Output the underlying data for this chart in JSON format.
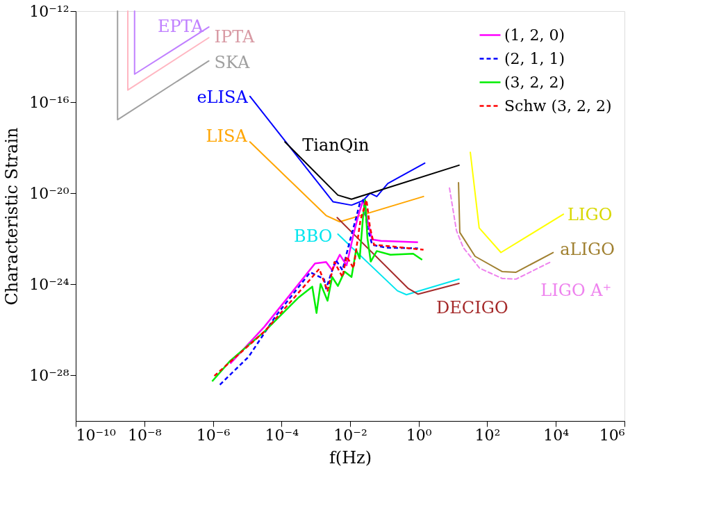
{
  "chart_data": {
    "type": "line",
    "xlabel": "f(Hz)",
    "ylabel": "Characteristic Strain",
    "log": "xy",
    "grid": false,
    "legend": "top right",
    "xlim": [
      1e-10,
      1000000.0
    ],
    "ylim": [
      1e-30,
      1e-12
    ],
    "xticks": [
      {
        "value": 1e-10,
        "label": "10⁻¹⁰"
      },
      {
        "value": 1e-08,
        "label": "10⁻⁸"
      },
      {
        "value": 1e-06,
        "label": "10⁻⁶"
      },
      {
        "value": 0.0001,
        "label": "10⁻⁴"
      },
      {
        "value": 0.01,
        "label": "10⁻²"
      },
      {
        "value": 1,
        "label": "10⁰"
      },
      {
        "value": 100,
        "label": "10²"
      },
      {
        "value": 10000,
        "label": "10⁴"
      },
      {
        "value": 1000000,
        "label": "10⁶"
      }
    ],
    "yticks": [
      {
        "value": 1e-28,
        "label": "10⁻²⁸"
      },
      {
        "value": 1e-24,
        "label": "10⁻²⁴"
      },
      {
        "value": 1e-20,
        "label": "10⁻²⁰"
      },
      {
        "value": 1e-16,
        "label": "10⁻¹⁶"
      },
      {
        "value": 1e-12,
        "label": "10⁻¹²"
      }
    ],
    "series": [
      {
        "name": "EPTA",
        "line_style": "solid",
        "color": "#c080ff",
        "x": [
          5.2e-09,
          5.2e-09,
          7.6e-07
        ],
        "values": [
          1e-12,
          1.7e-15,
          2e-13
        ]
      },
      {
        "name": "IPTA",
        "line_style": "solid",
        "color": "#ffb6c1",
        "x": [
          3.3e-09,
          3.3e-09,
          7.6e-07
        ],
        "values": [
          1e-12,
          3.4e-16,
          6.8e-14
        ]
      },
      {
        "name": "SKA",
        "line_style": "solid",
        "color": "#a0a0a0",
        "x": [
          1.66e-09,
          1.66e-09,
          7.6e-07
        ],
        "values": [
          1e-12,
          1.7e-17,
          6.5e-15
        ]
      },
      {
        "name": "eLISA",
        "line_style": "solid",
        "color": "#0000ff",
        "x": [
          1.2e-05,
          0.0011,
          0.0032,
          0.011,
          0.024,
          0.038,
          0.06,
          0.126,
          1.5
        ],
        "values": [
          1.8e-16,
          3.2e-20,
          4.2e-21,
          3e-21,
          4.8e-21,
          1e-20,
          7.2e-21,
          2.7e-20,
          2.1e-19
        ]
      },
      {
        "name": "LISA",
        "line_style": "solid",
        "color": "#ffa500",
        "x": [
          1.2e-05,
          0.002,
          0.005,
          1.38
        ],
        "values": [
          1.8e-18,
          1.05e-21,
          5.6e-22,
          7.2e-21
        ]
      },
      {
        "name": "TianQin",
        "line_style": "solid",
        "color": "#000000",
        "x": [
          0.000126,
          0.0044,
          0.011,
          15
        ],
        "values": [
          1.8e-18,
          8.3e-21,
          5.5e-21,
          1.7e-19
        ]
      },
      {
        "name": "BBO",
        "line_style": "solid",
        "color": "#00e5ee",
        "x": [
          0.0044,
          0.24,
          0.44,
          15
        ],
        "values": [
          1.6e-22,
          5.2e-25,
          3.5e-25,
          1.7e-24
        ]
      },
      {
        "name": "DECIGO",
        "line_style": "solid",
        "color": "#a52a2a",
        "x": [
          0.0042,
          0.5,
          0.95,
          15
        ],
        "values": [
          8.5e-22,
          6.5e-25,
          3.7e-25,
          1.1e-24
        ]
      },
      {
        "name": "LIGO",
        "line_style": "solid",
        "color": "#ffff00",
        "x": [
          32,
          58,
          250,
          16600
        ],
        "values": [
          6.3e-19,
          3e-22,
          2.5e-23,
          1.2e-21
        ]
      },
      {
        "name": "aLIGO",
        "line_style": "solid",
        "color": "#a08030",
        "x": [
          14.5,
          15.8,
          44,
          275,
          690,
          8300
        ],
        "values": [
          2.9e-20,
          1.9e-22,
          1.7e-23,
          3.6e-24,
          3.4e-24,
          2.5e-23
        ]
      },
      {
        "name": "LIGO A⁺",
        "color": "#ee82ee",
        "line_style": "dashed",
        "x": [
          7.9,
          12.6,
          20,
          60,
          275,
          690,
          6900
        ],
        "values": [
          1.7e-20,
          2.3e-22,
          4.1e-23,
          5.1e-24,
          1.8e-24,
          1.7e-24,
          9.5e-24
        ]
      },
      {
        "name": "(1, 2, 0)",
        "color": "#ff00ff",
        "line_style": "solid",
        "x": [
          3.2e-06,
          3.2e-05,
          0.00095,
          0.002,
          0.003,
          0.005,
          0.0079,
          0.0126,
          0.0174,
          0.024,
          0.032,
          0.044,
          0.079,
          0.95
        ],
        "values": [
          3.3e-28,
          1.4e-26,
          8.3e-24,
          9.5e-24,
          4.2e-24,
          2e-23,
          6.8e-24,
          1.6e-22,
          1.05e-21,
          5.1e-21,
          6.5e-22,
          9.3e-23,
          8.1e-23,
          7.1e-23
        ]
      },
      {
        "name": "(2, 1, 1)",
        "color": "#0000ff",
        "line_style": "dashed",
        "x": [
          1.6e-06,
          1.1e-05,
          6.9e-05,
          0.00069,
          0.00174,
          0.002,
          0.0038,
          0.006,
          0.0095,
          0.015,
          0.019,
          0.024,
          0.032,
          0.044,
          0.11,
          0.95
        ],
        "values": [
          3.9e-29,
          6.6e-28,
          4.2e-26,
          3.4e-24,
          1.7e-24,
          6.5e-25,
          1.2e-23,
          4.2e-24,
          6.6e-23,
          8.5e-22,
          3.4e-21,
          5.1e-21,
          3.2e-22,
          5.4e-23,
          4.1e-23,
          3.8e-23
        ]
      },
      {
        "name": "(3, 2, 2)",
        "color": "#00ee00",
        "line_style": "solid",
        "x": [
          9.5e-07,
          3.2e-06,
          3.2e-05,
          0.00032,
          0.00079,
          0.00105,
          0.00138,
          0.0022,
          0.003,
          0.0044,
          0.0069,
          0.011,
          0.015,
          0.019,
          0.024,
          0.0275,
          0.032,
          0.04,
          0.06,
          0.15,
          0.69,
          1.26
        ],
        "values": [
          5.5e-29,
          4.4e-28,
          8.5e-27,
          2.7e-25,
          7.9e-25,
          5.5e-26,
          1.05e-24,
          1.9e-25,
          2.1e-24,
          8.5e-25,
          3.6e-24,
          2.1e-24,
          3.3e-23,
          1.35e-23,
          1.05e-21,
          5.1e-21,
          1.07e-22,
          1e-23,
          2.9e-23,
          2e-23,
          2.2e-23,
          1.2e-23
        ]
      },
      {
        "name": "Schw (3, 2, 2)",
        "color": "#ff0000",
        "line_style": "dashed",
        "x": [
          1.1e-06,
          3.2e-05,
          0.00079,
          0.00126,
          0.0022,
          0.0035,
          0.006,
          0.0079,
          0.0126,
          0.02,
          0.03,
          0.038,
          0.05,
          0.15,
          1.38
        ],
        "values": [
          9.5e-29,
          8.5e-27,
          2.1e-24,
          4.8e-24,
          5.2e-25,
          9.5e-24,
          2.1e-24,
          1.7e-23,
          5.1e-24,
          6.5e-22,
          5.1e-21,
          3.2e-22,
          5.4e-23,
          4.7e-23,
          3.3e-23
        ]
      }
    ]
  }
}
